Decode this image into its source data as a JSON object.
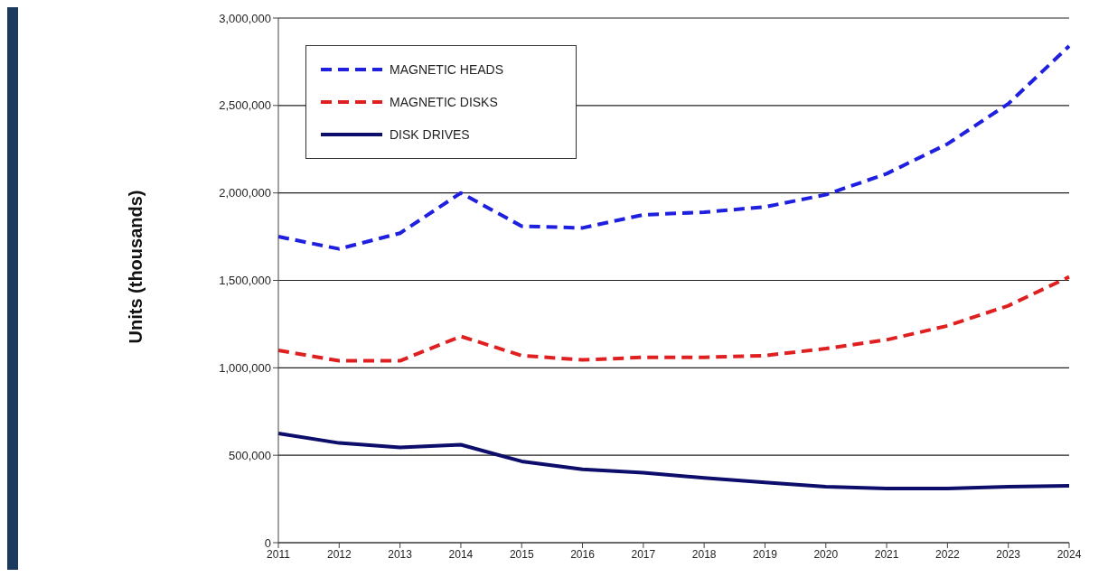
{
  "chart_data": {
    "type": "line",
    "ylabel": "Units (thousands)",
    "categories": [
      "2011",
      "2012",
      "2013",
      "2014",
      "2015",
      "2016",
      "2017",
      "2018",
      "2019",
      "2020",
      "2021",
      "2022",
      "2023",
      "2024"
    ],
    "series": [
      {
        "name": "MAGNETIC HEADS",
        "color": "#1f1fe0",
        "line_style": "dashed",
        "values": [
          1750000,
          1680000,
          1770000,
          2000000,
          1810000,
          1800000,
          1875000,
          1890000,
          1920000,
          1990000,
          2110000,
          2280000,
          2510000,
          2840000
        ]
      },
      {
        "name": "MAGNETIC DISKS",
        "color": "#e02020",
        "line_style": "dashed",
        "values": [
          1100000,
          1040000,
          1040000,
          1180000,
          1070000,
          1045000,
          1060000,
          1060000,
          1070000,
          1110000,
          1160000,
          1240000,
          1355000,
          1520000
        ]
      },
      {
        "name": "DISK DRIVES",
        "color": "#0d0d6b",
        "line_style": "solid",
        "values": [
          625000,
          570000,
          545000,
          560000,
          465000,
          420000,
          400000,
          370000,
          345000,
          320000,
          310000,
          310000,
          320000,
          325000
        ]
      }
    ],
    "ylim": [
      0,
      3000000
    ],
    "yticks": [
      0,
      {
        "value": 500000,
        "label": "500,000"
      },
      {
        "value": 1000000,
        "label": "1,000,000"
      },
      {
        "value": 1500000,
        "label": "1,500,000"
      },
      {
        "value": 2000000,
        "label": "2,000,000"
      },
      {
        "value": 2500000,
        "label": "2,500,000"
      },
      {
        "value": 3000000,
        "label": "3,000,000"
      }
    ],
    "grid": "y",
    "legend": "top left",
    "marker": "none"
  }
}
